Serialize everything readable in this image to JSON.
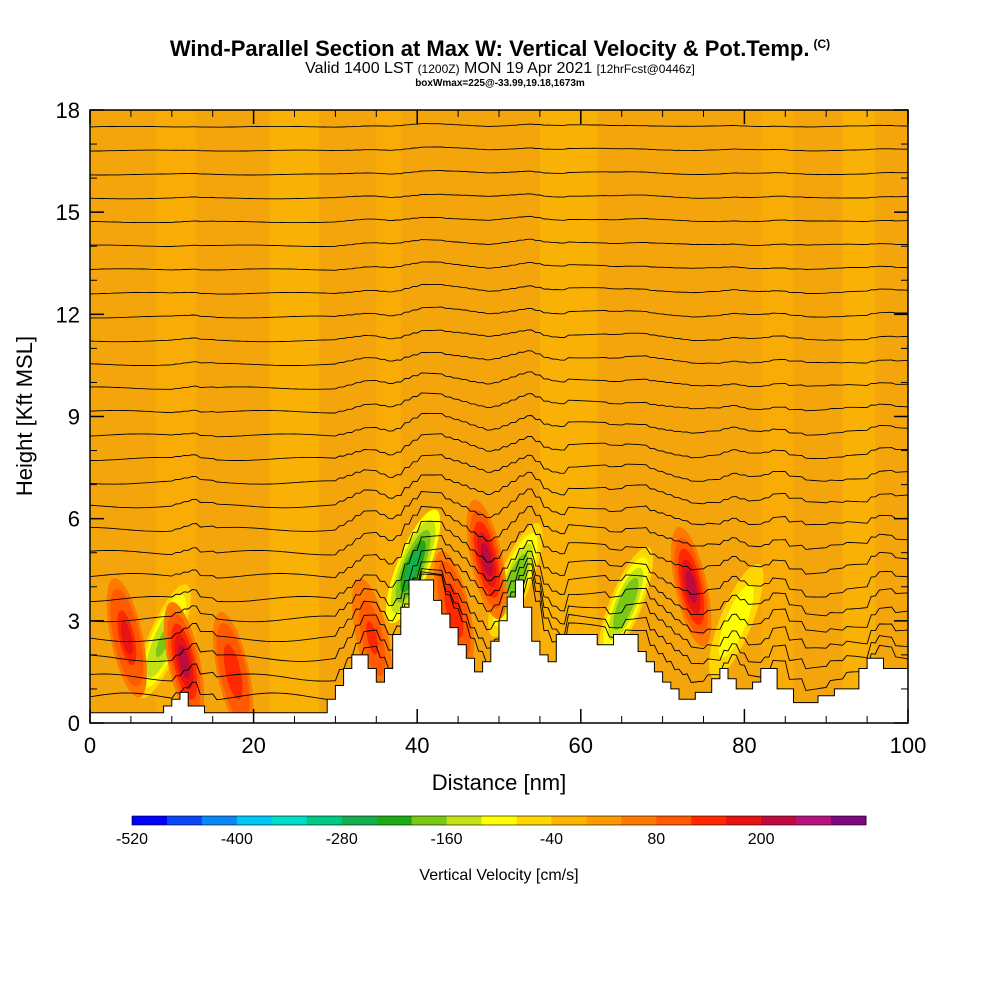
{
  "title": {
    "main": "Wind-Parallel Section at Max W: Vertical Velocity & Pot.Temp.",
    "units": "(C)",
    "valid_prefix": "Valid 1400 LST",
    "valid_utc": "(1200Z)",
    "valid_date": "MON 19 Apr 2021",
    "forecast": "[12hrFcst@0446z]",
    "box_info": "boxWmax=225@-33.99,19.18,1673m"
  },
  "chart_data": {
    "type": "heatmap",
    "title": "Wind-Parallel Section at Max W: Vertical Velocity & Pot.Temp.",
    "xlabel": "Distance [nm]",
    "ylabel": "Height [Kft MSL]",
    "xlim": [
      0,
      100
    ],
    "ylim": [
      0,
      18
    ],
    "x_ticks": [
      0,
      20,
      40,
      60,
      80,
      100
    ],
    "x_tick_labels": [
      "0",
      "20",
      "40",
      "60",
      "80",
      "100"
    ],
    "y_ticks": [
      0,
      3,
      6,
      9,
      12,
      15,
      18
    ],
    "y_tick_labels": [
      "0",
      "3",
      "6",
      "9",
      "12",
      "15",
      "18"
    ],
    "background_color": "#f5a50c",
    "colorbar": {
      "label": "Vertical Velocity [cm/s]",
      "tick_labels": [
        "-520",
        "-400",
        "-280",
        "-160",
        "-40",
        "80",
        "200"
      ],
      "colors": [
        "#0000ff",
        "#0a46f5",
        "#0a87f5",
        "#00c8f5",
        "#00dcc8",
        "#00c886",
        "#14b050",
        "#1faa14",
        "#78c814",
        "#c3e114",
        "#ffff00",
        "#ffd700",
        "#ffb400",
        "#ff9b00",
        "#ff7800",
        "#ff5a00",
        "#ff2800",
        "#e61414",
        "#be0a3c",
        "#b4147d",
        "#7d0a7d"
      ]
    },
    "terrain_kft": [
      [
        0,
        0.3
      ],
      [
        9,
        0.3
      ],
      [
        9,
        0.5
      ],
      [
        10,
        0.5
      ],
      [
        10,
        0.7
      ],
      [
        11,
        0.7
      ],
      [
        11,
        0.9
      ],
      [
        12,
        0.9
      ],
      [
        12,
        0.5
      ],
      [
        14,
        0.5
      ],
      [
        14,
        0.3
      ],
      [
        29,
        0.3
      ],
      [
        29,
        0.7
      ],
      [
        30,
        0.7
      ],
      [
        30,
        1.1
      ],
      [
        31,
        1.1
      ],
      [
        31,
        1.6
      ],
      [
        32,
        1.6
      ],
      [
        32,
        2.0
      ],
      [
        34,
        2.0
      ],
      [
        34,
        1.6
      ],
      [
        35,
        1.6
      ],
      [
        35,
        1.2
      ],
      [
        36,
        1.2
      ],
      [
        36,
        1.6
      ],
      [
        37,
        1.6
      ],
      [
        37,
        2.6
      ],
      [
        38,
        2.6
      ],
      [
        38,
        3.4
      ],
      [
        39,
        3.4
      ],
      [
        39,
        4.2
      ],
      [
        42,
        4.2
      ],
      [
        42,
        3.6
      ],
      [
        43,
        3.6
      ],
      [
        43,
        3.2
      ],
      [
        44,
        3.2
      ],
      [
        44,
        2.8
      ],
      [
        45,
        2.8
      ],
      [
        45,
        2.3
      ],
      [
        46,
        2.3
      ],
      [
        46,
        1.9
      ],
      [
        47,
        1.9
      ],
      [
        47,
        1.5
      ],
      [
        48,
        1.5
      ],
      [
        48,
        1.8
      ],
      [
        49,
        1.8
      ],
      [
        49,
        2.4
      ],
      [
        50,
        2.4
      ],
      [
        50,
        3.0
      ],
      [
        51,
        3.0
      ],
      [
        51,
        3.7
      ],
      [
        52,
        3.7
      ],
      [
        52,
        4.2
      ],
      [
        53,
        4.2
      ],
      [
        53,
        3.4
      ],
      [
        54,
        3.4
      ],
      [
        54,
        2.4
      ],
      [
        55,
        2.4
      ],
      [
        55,
        2.0
      ],
      [
        56,
        2.0
      ],
      [
        56,
        1.8
      ],
      [
        57,
        1.8
      ],
      [
        57,
        2.6
      ],
      [
        62,
        2.6
      ],
      [
        62,
        2.3
      ],
      [
        64,
        2.3
      ],
      [
        64,
        2.6
      ],
      [
        67,
        2.6
      ],
      [
        67,
        2.1
      ],
      [
        68,
        2.1
      ],
      [
        68,
        1.8
      ],
      [
        69,
        1.8
      ],
      [
        69,
        1.5
      ],
      [
        70,
        1.5
      ],
      [
        70,
        1.2
      ],
      [
        71,
        1.2
      ],
      [
        71,
        1.0
      ],
      [
        72,
        1.0
      ],
      [
        72,
        0.7
      ],
      [
        74,
        0.7
      ],
      [
        74,
        0.9
      ],
      [
        76,
        0.9
      ],
      [
        76,
        1.3
      ],
      [
        77,
        1.3
      ],
      [
        77,
        1.6
      ],
      [
        78,
        1.6
      ],
      [
        78,
        1.3
      ],
      [
        79,
        1.3
      ],
      [
        79,
        1.0
      ],
      [
        81,
        1.0
      ],
      [
        81,
        1.2
      ],
      [
        82,
        1.2
      ],
      [
        82,
        1.6
      ],
      [
        84,
        1.6
      ],
      [
        84,
        1.0
      ],
      [
        86,
        1.0
      ],
      [
        86,
        0.6
      ],
      [
        89,
        0.6
      ],
      [
        89,
        0.8
      ],
      [
        91,
        0.8
      ],
      [
        91,
        1.0
      ],
      [
        94,
        1.0
      ],
      [
        94,
        1.6
      ],
      [
        95,
        1.6
      ],
      [
        95,
        1.9
      ],
      [
        97,
        1.9
      ],
      [
        97,
        1.6
      ],
      [
        100,
        1.6
      ]
    ],
    "updraft_cores": [
      {
        "x": 4.5,
        "y": 2.5,
        "peak_cm_s": 160
      },
      {
        "x": 11.5,
        "y": 1.8,
        "peak_cm_s": 200
      },
      {
        "x": 17.5,
        "y": 1.5,
        "peak_cm_s": 140
      },
      {
        "x": 34.5,
        "y": 2.5,
        "peak_cm_s": 120
      },
      {
        "x": 44.5,
        "y": 3.3,
        "peak_cm_s": 150
      },
      {
        "x": 48.5,
        "y": 4.8,
        "peak_cm_s": 225
      },
      {
        "x": 73.5,
        "y": 4.0,
        "peak_cm_s": 225
      }
    ],
    "downdraft_cores": [
      {
        "x": 9.0,
        "y": 2.4,
        "peak_cm_s": -180
      },
      {
        "x": 39.5,
        "y": 4.6,
        "peak_cm_s": -280
      },
      {
        "x": 52.0,
        "y": 4.2,
        "peak_cm_s": -200
      },
      {
        "x": 65.5,
        "y": 3.5,
        "peak_cm_s": -200
      },
      {
        "x": 79.0,
        "y": 3.0,
        "peak_cm_s": -120
      }
    ],
    "theta_contour_base_kft": [
      0.5,
      1.1,
      1.7,
      2.3,
      2.9,
      3.5,
      4.2,
      4.9,
      5.6,
      6.3,
      7.0,
      7.7,
      8.4,
      9.1,
      9.8,
      10.5,
      11.2,
      11.9,
      12.6,
      13.3,
      14.0,
      14.7,
      15.4,
      16.1,
      16.8,
      17.5
    ]
  }
}
